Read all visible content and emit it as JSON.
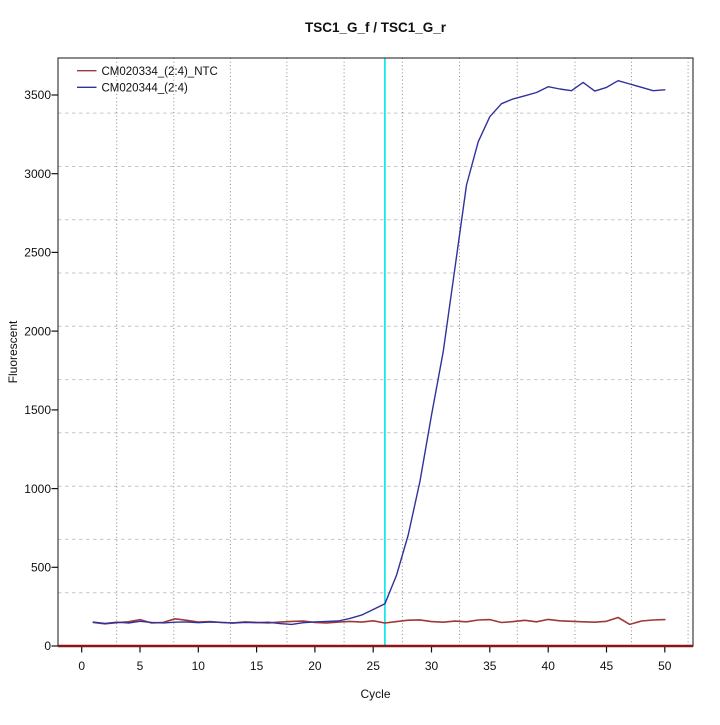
{
  "chart_data": {
    "type": "line",
    "title": "TSC1_G_f / TSC1_G_r",
    "xlabel": "Cycle",
    "ylabel": "Fluorescent",
    "x_ticks": [
      0,
      5,
      10,
      15,
      20,
      25,
      30,
      35,
      40,
      45,
      50
    ],
    "y_ticks": [
      0,
      500,
      1000,
      1500,
      2000,
      2500,
      3000,
      3500
    ],
    "xlim": [
      -2.03,
      52.42
    ],
    "ylim": [
      0,
      3735
    ],
    "grid": {
      "vertical_x": [
        3.0,
        7.9,
        12.75,
        17.6,
        22.5,
        27.5,
        32.4,
        37.35,
        42.3,
        47.15,
        52.0
      ],
      "horizontal_y": [
        338,
        677,
        1015,
        1354,
        1692,
        2031,
        2369,
        2708,
        3046,
        3385
      ],
      "v_style": "dotted",
      "h_style": "dashed",
      "v_color": "#8c8c8c",
      "h_color": "#c6c6c6"
    },
    "threshold_line": {
      "x": 26,
      "color": "#00e6e6"
    },
    "zero_line": {
      "y": 0,
      "color": "#8b1616"
    },
    "axis_color": "#3c3c3c",
    "legend": {
      "position": "top-left"
    },
    "x": [
      1,
      2,
      3,
      4,
      5,
      6,
      7,
      8,
      9,
      10,
      11,
      12,
      13,
      14,
      15,
      16,
      17,
      18,
      19,
      20,
      21,
      22,
      23,
      24,
      25,
      26,
      27,
      28,
      29,
      30,
      31,
      32,
      33,
      34,
      35,
      36,
      37,
      38,
      39,
      40,
      41,
      42,
      43,
      44,
      45,
      46,
      47,
      48,
      49,
      50
    ],
    "series": [
      {
        "name": "CM020334_(2:4)_NTC",
        "color": "#9e3939",
        "values": [
          150,
          141,
          148,
          154,
          168,
          146,
          150,
          173,
          163,
          152,
          155,
          149,
          147,
          153,
          150,
          147,
          152,
          156,
          158,
          150,
          147,
          152,
          156,
          152,
          160,
          146,
          155,
          164,
          166,
          155,
          151,
          158,
          154,
          165,
          168,
          149,
          155,
          163,
          154,
          169,
          160,
          157,
          154,
          151,
          157,
          181,
          137,
          159,
          165,
          168
        ]
      },
      {
        "name": "CM020344_(2:4)",
        "color": "#31319c",
        "values": [
          152,
          143,
          151,
          146,
          157,
          150,
          147,
          151,
          153,
          148,
          152,
          150,
          146,
          150,
          148,
          151,
          142,
          137,
          148,
          153,
          156,
          159,
          175,
          196,
          232,
          268,
          451,
          705,
          1044,
          1467,
          1869,
          2399,
          2928,
          3203,
          3362,
          3445,
          3475,
          3495,
          3516,
          3553,
          3538,
          3527,
          3580,
          3525,
          3548,
          3591,
          3570,
          3549,
          3527,
          3533
        ]
      }
    ]
  }
}
